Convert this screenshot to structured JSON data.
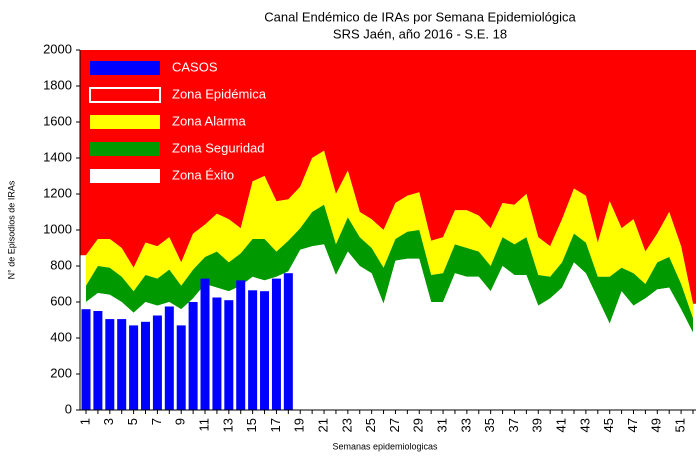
{
  "chart_data": {
    "type": "area",
    "title": "Canal Endémico de IRAs por Semana Epidemiológica",
    "subtitle": "SRS Jaén, año 2016 - S.E. 18",
    "x_label": "Semanas epidemiologicas",
    "y_label": "N° de Episodios de IRAs",
    "categories": [
      "1",
      null,
      "3",
      null,
      "5",
      null,
      "7",
      null,
      "9",
      null,
      "11",
      null,
      "13",
      null,
      "15",
      null,
      "17",
      null,
      "19",
      null,
      "21",
      null,
      "23",
      null,
      "25",
      null,
      "27",
      null,
      "29",
      null,
      "31",
      null,
      "33",
      null,
      "35",
      null,
      "37",
      null,
      "39",
      null,
      "41",
      null,
      "43",
      null,
      "45",
      null,
      "47",
      null,
      "49",
      null,
      "51",
      null
    ],
    "ylim": [
      0,
      2000
    ],
    "yticks": [
      0,
      200,
      400,
      600,
      800,
      1000,
      1200,
      1400,
      1600,
      1800,
      2000
    ],
    "legend": "upper left",
    "series": [
      {
        "name": "CASOS",
        "type": "bar",
        "color": "#0000ff",
        "values": [
          560,
          550,
          505,
          505,
          470,
          490,
          525,
          575,
          470,
          600,
          730,
          625,
          610,
          720,
          665,
          660,
          730,
          760,
          null,
          null,
          null,
          null,
          null,
          null,
          null,
          null,
          null,
          null,
          null,
          null,
          null,
          null,
          null,
          null,
          null,
          null,
          null,
          null,
          null,
          null,
          null,
          null,
          null,
          null,
          null,
          null,
          null,
          null,
          null,
          null,
          null,
          null
        ]
      },
      {
        "name": "Zona Epidémica",
        "type": "area",
        "color": "#ff0000"
      },
      {
        "name": "Zona Alarma",
        "type": "area",
        "color": "#ffff00",
        "values": [
          170,
          150,
          160,
          160,
          130,
          180,
          180,
          180,
          130,
          200,
          180,
          210,
          240,
          140,
          320,
          350,
          280,
          230,
          230,
          300,
          300,
          280,
          260,
          140,
          160,
          210,
          200,
          200,
          210,
          190,
          200,
          190,
          210,
          200,
          210,
          190,
          220,
          240,
          210,
          170,
          240,
          250,
          260,
          190,
          420,
          220,
          300,
          180,
          160,
          250,
          210,
          80
        ]
      },
      {
        "name": "Zona Seguridad",
        "type": "area",
        "color": "#009900",
        "values": [
          90,
          150,
          150,
          140,
          120,
          150,
          150,
          180,
          130,
          160,
          150,
          200,
          160,
          180,
          210,
          230,
          140,
          170,
          120,
          190,
          220,
          170,
          190,
          160,
          140,
          200,
          120,
          150,
          160,
          150,
          160,
          160,
          160,
          140,
          140,
          160,
          170,
          210,
          170,
          120,
          140,
          160,
          170,
          120,
          260,
          130,
          180,
          80,
          150,
          170,
          140,
          80
        ]
      },
      {
        "name": "Zona Éxito",
        "type": "area",
        "color": "#ffffff",
        "values": [
          600,
          650,
          640,
          600,
          540,
          600,
          580,
          600,
          560,
          620,
          700,
          680,
          660,
          690,
          740,
          720,
          740,
          770,
          890,
          910,
          920,
          750,
          880,
          800,
          760,
          590,
          830,
          840,
          840,
          600,
          600,
          760,
          740,
          740,
          660,
          800,
          750,
          750,
          580,
          620,
          680,
          820,
          760,
          620,
          480,
          660,
          580,
          620,
          670,
          680,
          560,
          430
        ]
      }
    ]
  }
}
